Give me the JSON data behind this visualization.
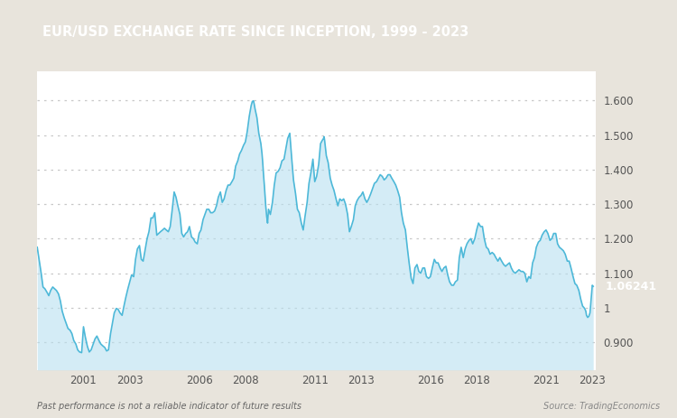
{
  "title": "EUR/USD EXCHANGE RATE SINCE INCEPTION, 1999 - 2023",
  "title_bg_color": "#9B6E52",
  "title_text_color": "#FFFFFF",
  "line_color": "#4DB8D8",
  "fill_color": "#B8E0F0",
  "fill_alpha": 0.6,
  "bg_color": "#E8E4DC",
  "plot_bg_color": "#FFFFFF",
  "grid_color": "#BBBBBB",
  "last_value": 1.06241,
  "last_value_bg": "#29A8CC",
  "last_value_text_color": "#FFFFFF",
  "tick_color": "#555555",
  "footnote_left": "Past performance is not a reliable indicator of future results",
  "footnote_right": "Source: TradingEconomics",
  "ylim_min": 0.82,
  "ylim_max": 1.685,
  "yticks": [
    0.9,
    1.0,
    1.1,
    1.2,
    1.3,
    1.4,
    1.5,
    1.6
  ],
  "xtick_years": [
    2001,
    2003,
    2006,
    2008,
    2011,
    2013,
    2016,
    2018,
    2021,
    2023
  ],
  "data": [
    [
      1999.0,
      1.175
    ],
    [
      1999.08,
      1.14
    ],
    [
      1999.17,
      1.1
    ],
    [
      1999.25,
      1.06
    ],
    [
      1999.33,
      1.055
    ],
    [
      1999.42,
      1.045
    ],
    [
      1999.5,
      1.035
    ],
    [
      1999.58,
      1.05
    ],
    [
      1999.67,
      1.06
    ],
    [
      1999.75,
      1.055
    ],
    [
      1999.83,
      1.05
    ],
    [
      1999.92,
      1.04
    ],
    [
      2000.0,
      1.02
    ],
    [
      2000.08,
      0.99
    ],
    [
      2000.17,
      0.97
    ],
    [
      2000.25,
      0.955
    ],
    [
      2000.33,
      0.94
    ],
    [
      2000.42,
      0.935
    ],
    [
      2000.5,
      0.925
    ],
    [
      2000.58,
      0.905
    ],
    [
      2000.67,
      0.895
    ],
    [
      2000.75,
      0.878
    ],
    [
      2000.83,
      0.872
    ],
    [
      2000.92,
      0.87
    ],
    [
      2001.0,
      0.945
    ],
    [
      2001.08,
      0.915
    ],
    [
      2001.17,
      0.888
    ],
    [
      2001.25,
      0.872
    ],
    [
      2001.33,
      0.878
    ],
    [
      2001.42,
      0.895
    ],
    [
      2001.5,
      0.91
    ],
    [
      2001.58,
      0.918
    ],
    [
      2001.67,
      0.905
    ],
    [
      2001.75,
      0.895
    ],
    [
      2001.83,
      0.89
    ],
    [
      2001.92,
      0.885
    ],
    [
      2002.0,
      0.875
    ],
    [
      2002.08,
      0.878
    ],
    [
      2002.17,
      0.925
    ],
    [
      2002.25,
      0.955
    ],
    [
      2002.33,
      0.985
    ],
    [
      2002.42,
      0.998
    ],
    [
      2002.5,
      0.995
    ],
    [
      2002.58,
      0.985
    ],
    [
      2002.67,
      0.978
    ],
    [
      2002.75,
      1.005
    ],
    [
      2002.83,
      1.03
    ],
    [
      2002.92,
      1.055
    ],
    [
      2003.0,
      1.075
    ],
    [
      2003.08,
      1.095
    ],
    [
      2003.17,
      1.09
    ],
    [
      2003.25,
      1.14
    ],
    [
      2003.33,
      1.17
    ],
    [
      2003.42,
      1.18
    ],
    [
      2003.5,
      1.14
    ],
    [
      2003.58,
      1.135
    ],
    [
      2003.67,
      1.17
    ],
    [
      2003.75,
      1.2
    ],
    [
      2003.83,
      1.22
    ],
    [
      2003.92,
      1.26
    ],
    [
      2004.0,
      1.26
    ],
    [
      2004.08,
      1.275
    ],
    [
      2004.17,
      1.21
    ],
    [
      2004.25,
      1.215
    ],
    [
      2004.33,
      1.22
    ],
    [
      2004.42,
      1.225
    ],
    [
      2004.5,
      1.23
    ],
    [
      2004.58,
      1.225
    ],
    [
      2004.67,
      1.22
    ],
    [
      2004.75,
      1.235
    ],
    [
      2004.83,
      1.28
    ],
    [
      2004.92,
      1.335
    ],
    [
      2005.0,
      1.32
    ],
    [
      2005.08,
      1.295
    ],
    [
      2005.17,
      1.27
    ],
    [
      2005.25,
      1.215
    ],
    [
      2005.33,
      1.205
    ],
    [
      2005.42,
      1.215
    ],
    [
      2005.5,
      1.22
    ],
    [
      2005.58,
      1.235
    ],
    [
      2005.67,
      1.205
    ],
    [
      2005.75,
      1.2
    ],
    [
      2005.83,
      1.19
    ],
    [
      2005.92,
      1.185
    ],
    [
      2006.0,
      1.215
    ],
    [
      2006.08,
      1.225
    ],
    [
      2006.17,
      1.255
    ],
    [
      2006.25,
      1.27
    ],
    [
      2006.33,
      1.285
    ],
    [
      2006.42,
      1.285
    ],
    [
      2006.5,
      1.275
    ],
    [
      2006.58,
      1.275
    ],
    [
      2006.67,
      1.28
    ],
    [
      2006.75,
      1.295
    ],
    [
      2006.83,
      1.32
    ],
    [
      2006.92,
      1.335
    ],
    [
      2007.0,
      1.305
    ],
    [
      2007.08,
      1.315
    ],
    [
      2007.17,
      1.34
    ],
    [
      2007.25,
      1.355
    ],
    [
      2007.33,
      1.355
    ],
    [
      2007.42,
      1.365
    ],
    [
      2007.5,
      1.375
    ],
    [
      2007.58,
      1.41
    ],
    [
      2007.67,
      1.425
    ],
    [
      2007.75,
      1.445
    ],
    [
      2007.83,
      1.455
    ],
    [
      2007.92,
      1.47
    ],
    [
      2008.0,
      1.48
    ],
    [
      2008.08,
      1.51
    ],
    [
      2008.17,
      1.555
    ],
    [
      2008.25,
      1.585
    ],
    [
      2008.3,
      1.597
    ],
    [
      2008.33,
      1.598
    ],
    [
      2008.35,
      1.599
    ],
    [
      2008.38,
      1.59
    ],
    [
      2008.42,
      1.575
    ],
    [
      2008.5,
      1.55
    ],
    [
      2008.58,
      1.505
    ],
    [
      2008.67,
      1.475
    ],
    [
      2008.72,
      1.445
    ],
    [
      2008.75,
      1.42
    ],
    [
      2008.78,
      1.39
    ],
    [
      2008.83,
      1.345
    ],
    [
      2008.88,
      1.295
    ],
    [
      2008.92,
      1.265
    ],
    [
      2008.96,
      1.245
    ],
    [
      2009.0,
      1.285
    ],
    [
      2009.08,
      1.27
    ],
    [
      2009.17,
      1.305
    ],
    [
      2009.25,
      1.355
    ],
    [
      2009.33,
      1.39
    ],
    [
      2009.42,
      1.395
    ],
    [
      2009.5,
      1.405
    ],
    [
      2009.58,
      1.425
    ],
    [
      2009.67,
      1.43
    ],
    [
      2009.75,
      1.46
    ],
    [
      2009.83,
      1.49
    ],
    [
      2009.92,
      1.505
    ],
    [
      2010.0,
      1.435
    ],
    [
      2010.08,
      1.37
    ],
    [
      2010.17,
      1.33
    ],
    [
      2010.25,
      1.285
    ],
    [
      2010.33,
      1.275
    ],
    [
      2010.42,
      1.245
    ],
    [
      2010.5,
      1.225
    ],
    [
      2010.58,
      1.265
    ],
    [
      2010.67,
      1.305
    ],
    [
      2010.75,
      1.36
    ],
    [
      2010.83,
      1.39
    ],
    [
      2010.92,
      1.43
    ],
    [
      2011.0,
      1.365
    ],
    [
      2011.08,
      1.38
    ],
    [
      2011.17,
      1.415
    ],
    [
      2011.25,
      1.475
    ],
    [
      2011.33,
      1.485
    ],
    [
      2011.38,
      1.49
    ],
    [
      2011.4,
      1.495
    ],
    [
      2011.42,
      1.488
    ],
    [
      2011.5,
      1.44
    ],
    [
      2011.58,
      1.42
    ],
    [
      2011.67,
      1.375
    ],
    [
      2011.75,
      1.355
    ],
    [
      2011.83,
      1.34
    ],
    [
      2011.92,
      1.315
    ],
    [
      2012.0,
      1.295
    ],
    [
      2012.08,
      1.315
    ],
    [
      2012.17,
      1.31
    ],
    [
      2012.25,
      1.315
    ],
    [
      2012.33,
      1.3
    ],
    [
      2012.42,
      1.27
    ],
    [
      2012.5,
      1.22
    ],
    [
      2012.58,
      1.235
    ],
    [
      2012.67,
      1.255
    ],
    [
      2012.75,
      1.295
    ],
    [
      2012.83,
      1.31
    ],
    [
      2012.92,
      1.32
    ],
    [
      2013.0,
      1.325
    ],
    [
      2013.08,
      1.335
    ],
    [
      2013.17,
      1.315
    ],
    [
      2013.25,
      1.305
    ],
    [
      2013.33,
      1.315
    ],
    [
      2013.42,
      1.33
    ],
    [
      2013.5,
      1.345
    ],
    [
      2013.58,
      1.36
    ],
    [
      2013.67,
      1.365
    ],
    [
      2013.75,
      1.375
    ],
    [
      2013.83,
      1.385
    ],
    [
      2013.92,
      1.38
    ],
    [
      2014.0,
      1.37
    ],
    [
      2014.08,
      1.375
    ],
    [
      2014.17,
      1.385
    ],
    [
      2014.25,
      1.385
    ],
    [
      2014.33,
      1.375
    ],
    [
      2014.42,
      1.365
    ],
    [
      2014.5,
      1.355
    ],
    [
      2014.58,
      1.34
    ],
    [
      2014.67,
      1.32
    ],
    [
      2014.75,
      1.275
    ],
    [
      2014.83,
      1.245
    ],
    [
      2014.92,
      1.225
    ],
    [
      2015.0,
      1.175
    ],
    [
      2015.08,
      1.13
    ],
    [
      2015.17,
      1.085
    ],
    [
      2015.25,
      1.07
    ],
    [
      2015.33,
      1.115
    ],
    [
      2015.42,
      1.125
    ],
    [
      2015.5,
      1.105
    ],
    [
      2015.58,
      1.1
    ],
    [
      2015.67,
      1.115
    ],
    [
      2015.75,
      1.115
    ],
    [
      2015.83,
      1.09
    ],
    [
      2015.92,
      1.085
    ],
    [
      2016.0,
      1.09
    ],
    [
      2016.08,
      1.115
    ],
    [
      2016.17,
      1.14
    ],
    [
      2016.25,
      1.13
    ],
    [
      2016.33,
      1.13
    ],
    [
      2016.42,
      1.115
    ],
    [
      2016.5,
      1.105
    ],
    [
      2016.58,
      1.115
    ],
    [
      2016.67,
      1.12
    ],
    [
      2016.75,
      1.095
    ],
    [
      2016.83,
      1.075
    ],
    [
      2016.92,
      1.065
    ],
    [
      2017.0,
      1.065
    ],
    [
      2017.08,
      1.075
    ],
    [
      2017.17,
      1.08
    ],
    [
      2017.25,
      1.145
    ],
    [
      2017.33,
      1.175
    ],
    [
      2017.42,
      1.145
    ],
    [
      2017.5,
      1.17
    ],
    [
      2017.58,
      1.185
    ],
    [
      2017.67,
      1.195
    ],
    [
      2017.75,
      1.2
    ],
    [
      2017.83,
      1.185
    ],
    [
      2017.92,
      1.2
    ],
    [
      2018.0,
      1.225
    ],
    [
      2018.08,
      1.245
    ],
    [
      2018.17,
      1.235
    ],
    [
      2018.25,
      1.235
    ],
    [
      2018.33,
      1.2
    ],
    [
      2018.42,
      1.175
    ],
    [
      2018.5,
      1.17
    ],
    [
      2018.58,
      1.155
    ],
    [
      2018.67,
      1.16
    ],
    [
      2018.75,
      1.155
    ],
    [
      2018.83,
      1.145
    ],
    [
      2018.92,
      1.135
    ],
    [
      2019.0,
      1.145
    ],
    [
      2019.08,
      1.135
    ],
    [
      2019.17,
      1.125
    ],
    [
      2019.25,
      1.12
    ],
    [
      2019.33,
      1.125
    ],
    [
      2019.42,
      1.13
    ],
    [
      2019.5,
      1.115
    ],
    [
      2019.58,
      1.105
    ],
    [
      2019.67,
      1.1
    ],
    [
      2019.75,
      1.105
    ],
    [
      2019.83,
      1.11
    ],
    [
      2019.92,
      1.105
    ],
    [
      2020.0,
      1.105
    ],
    [
      2020.08,
      1.1
    ],
    [
      2020.17,
      1.075
    ],
    [
      2020.25,
      1.09
    ],
    [
      2020.33,
      1.085
    ],
    [
      2020.42,
      1.13
    ],
    [
      2020.5,
      1.145
    ],
    [
      2020.58,
      1.175
    ],
    [
      2020.67,
      1.19
    ],
    [
      2020.75,
      1.195
    ],
    [
      2020.83,
      1.21
    ],
    [
      2020.92,
      1.22
    ],
    [
      2021.0,
      1.225
    ],
    [
      2021.08,
      1.215
    ],
    [
      2021.17,
      1.195
    ],
    [
      2021.25,
      1.2
    ],
    [
      2021.33,
      1.215
    ],
    [
      2021.42,
      1.215
    ],
    [
      2021.5,
      1.185
    ],
    [
      2021.58,
      1.175
    ],
    [
      2021.67,
      1.17
    ],
    [
      2021.75,
      1.165
    ],
    [
      2021.83,
      1.155
    ],
    [
      2021.92,
      1.135
    ],
    [
      2022.0,
      1.135
    ],
    [
      2022.08,
      1.115
    ],
    [
      2022.17,
      1.09
    ],
    [
      2022.25,
      1.07
    ],
    [
      2022.33,
      1.065
    ],
    [
      2022.42,
      1.05
    ],
    [
      2022.5,
      1.025
    ],
    [
      2022.58,
      1.005
    ],
    [
      2022.67,
      0.998
    ],
    [
      2022.72,
      0.99
    ],
    [
      2022.75,
      0.978
    ],
    [
      2022.8,
      0.972
    ],
    [
      2022.85,
      0.975
    ],
    [
      2022.9,
      0.985
    ],
    [
      2022.95,
      1.025
    ],
    [
      2023.0,
      1.065
    ],
    [
      2023.04,
      1.062
    ]
  ]
}
